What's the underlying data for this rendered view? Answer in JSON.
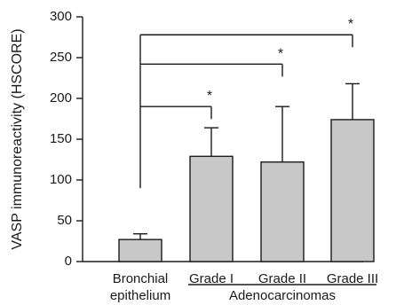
{
  "chart_data": {
    "type": "bar",
    "title": "",
    "ylabel": "VASP immunoreactivity (HSCORE)",
    "xlabel": "",
    "ylim": [
      0,
      300
    ],
    "yticks": [
      0,
      50,
      100,
      150,
      200,
      250,
      300
    ],
    "categories": [
      [
        "Bronchial",
        "epithelium"
      ],
      [
        "Grade I"
      ],
      [
        "Grade II"
      ],
      [
        "Grade III"
      ]
    ],
    "values": [
      27,
      129,
      122,
      174
    ],
    "error_upper": [
      34,
      164,
      190,
      218
    ],
    "group_label": "Adenocarcinomas",
    "significance": [
      {
        "from": 0,
        "to": 1,
        "label": "*",
        "y": 190
      },
      {
        "from": 0,
        "to": 2,
        "label": "*",
        "y": 242
      },
      {
        "from": 0,
        "to": 3,
        "label": "*",
        "y": 278
      }
    ],
    "colors": {
      "bar": "#c8c8c8",
      "stroke": "#1a1a1a"
    }
  }
}
